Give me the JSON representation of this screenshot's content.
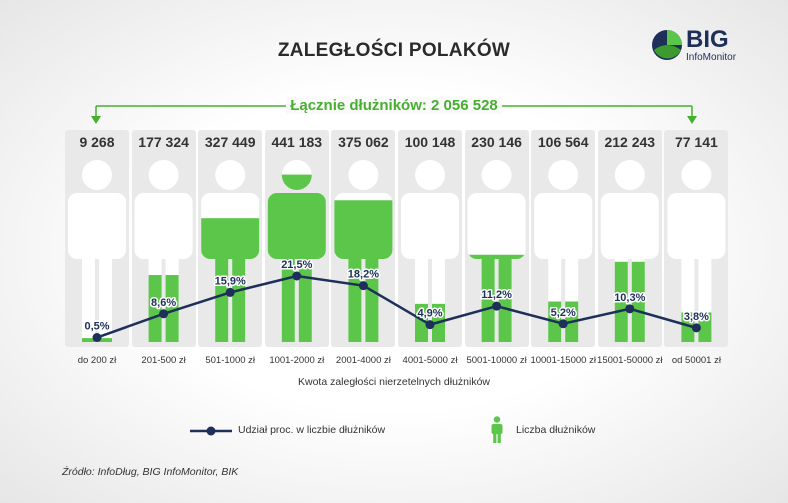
{
  "title": "ZALEGŁOŚCI POLAKÓW",
  "logo": {
    "name": "BIG",
    "sub": "InfoMonitor"
  },
  "total_label": "Łącznie dłużników: 2 056 528",
  "colors": {
    "green": "#5cc64a",
    "navy": "#1e2f5a",
    "figure": "#ffffff",
    "panel": "#e9e9e9"
  },
  "chart_data": {
    "type": "line",
    "title": "ZALEGŁOŚCI POLAKÓW",
    "xlabel": "Kwota zaległości nierzetelnych dłużników",
    "ylabel": "",
    "categories": [
      "do 200 zł",
      "201-500 zł",
      "501-1000 zł",
      "1001-2000 zł",
      "2001-4000 zł",
      "4001-5000 zł",
      "5001-10000 zł",
      "10001-15000 zł",
      "15001-50000 zł",
      "od 50001 zł"
    ],
    "count_labels": [
      "9 268",
      "177 324",
      "327 449",
      "441 183",
      "375 062",
      "100 148",
      "230 146",
      "106 564",
      "212 243",
      "77 141"
    ],
    "series": [
      {
        "name": "Udział proc. w liczbie dłużników",
        "values": [
          0.5,
          8.6,
          15.9,
          21.5,
          18.2,
          4.9,
          11.2,
          5.2,
          10.3,
          3.8
        ],
        "labels": [
          "0,5%",
          "8,6%",
          "15,9%",
          "21,5%",
          "18,2%",
          "4,9%",
          "11,2%",
          "5,2%",
          "10,3%",
          "3,8%"
        ]
      },
      {
        "name": "Liczba dłużników",
        "values": [
          9268,
          177324,
          327449,
          441183,
          375062,
          100148,
          230146,
          106564,
          212243,
          77141
        ]
      }
    ],
    "ylim": [
      0,
      25
    ],
    "legend": [
      {
        "label": "Udział proc. w liczbie dłużników",
        "kind": "line"
      },
      {
        "label": "Liczba dłużników",
        "kind": "figure"
      }
    ]
  },
  "source": "Źródło: InfoDług, BIG InfoMonitor, BIK"
}
